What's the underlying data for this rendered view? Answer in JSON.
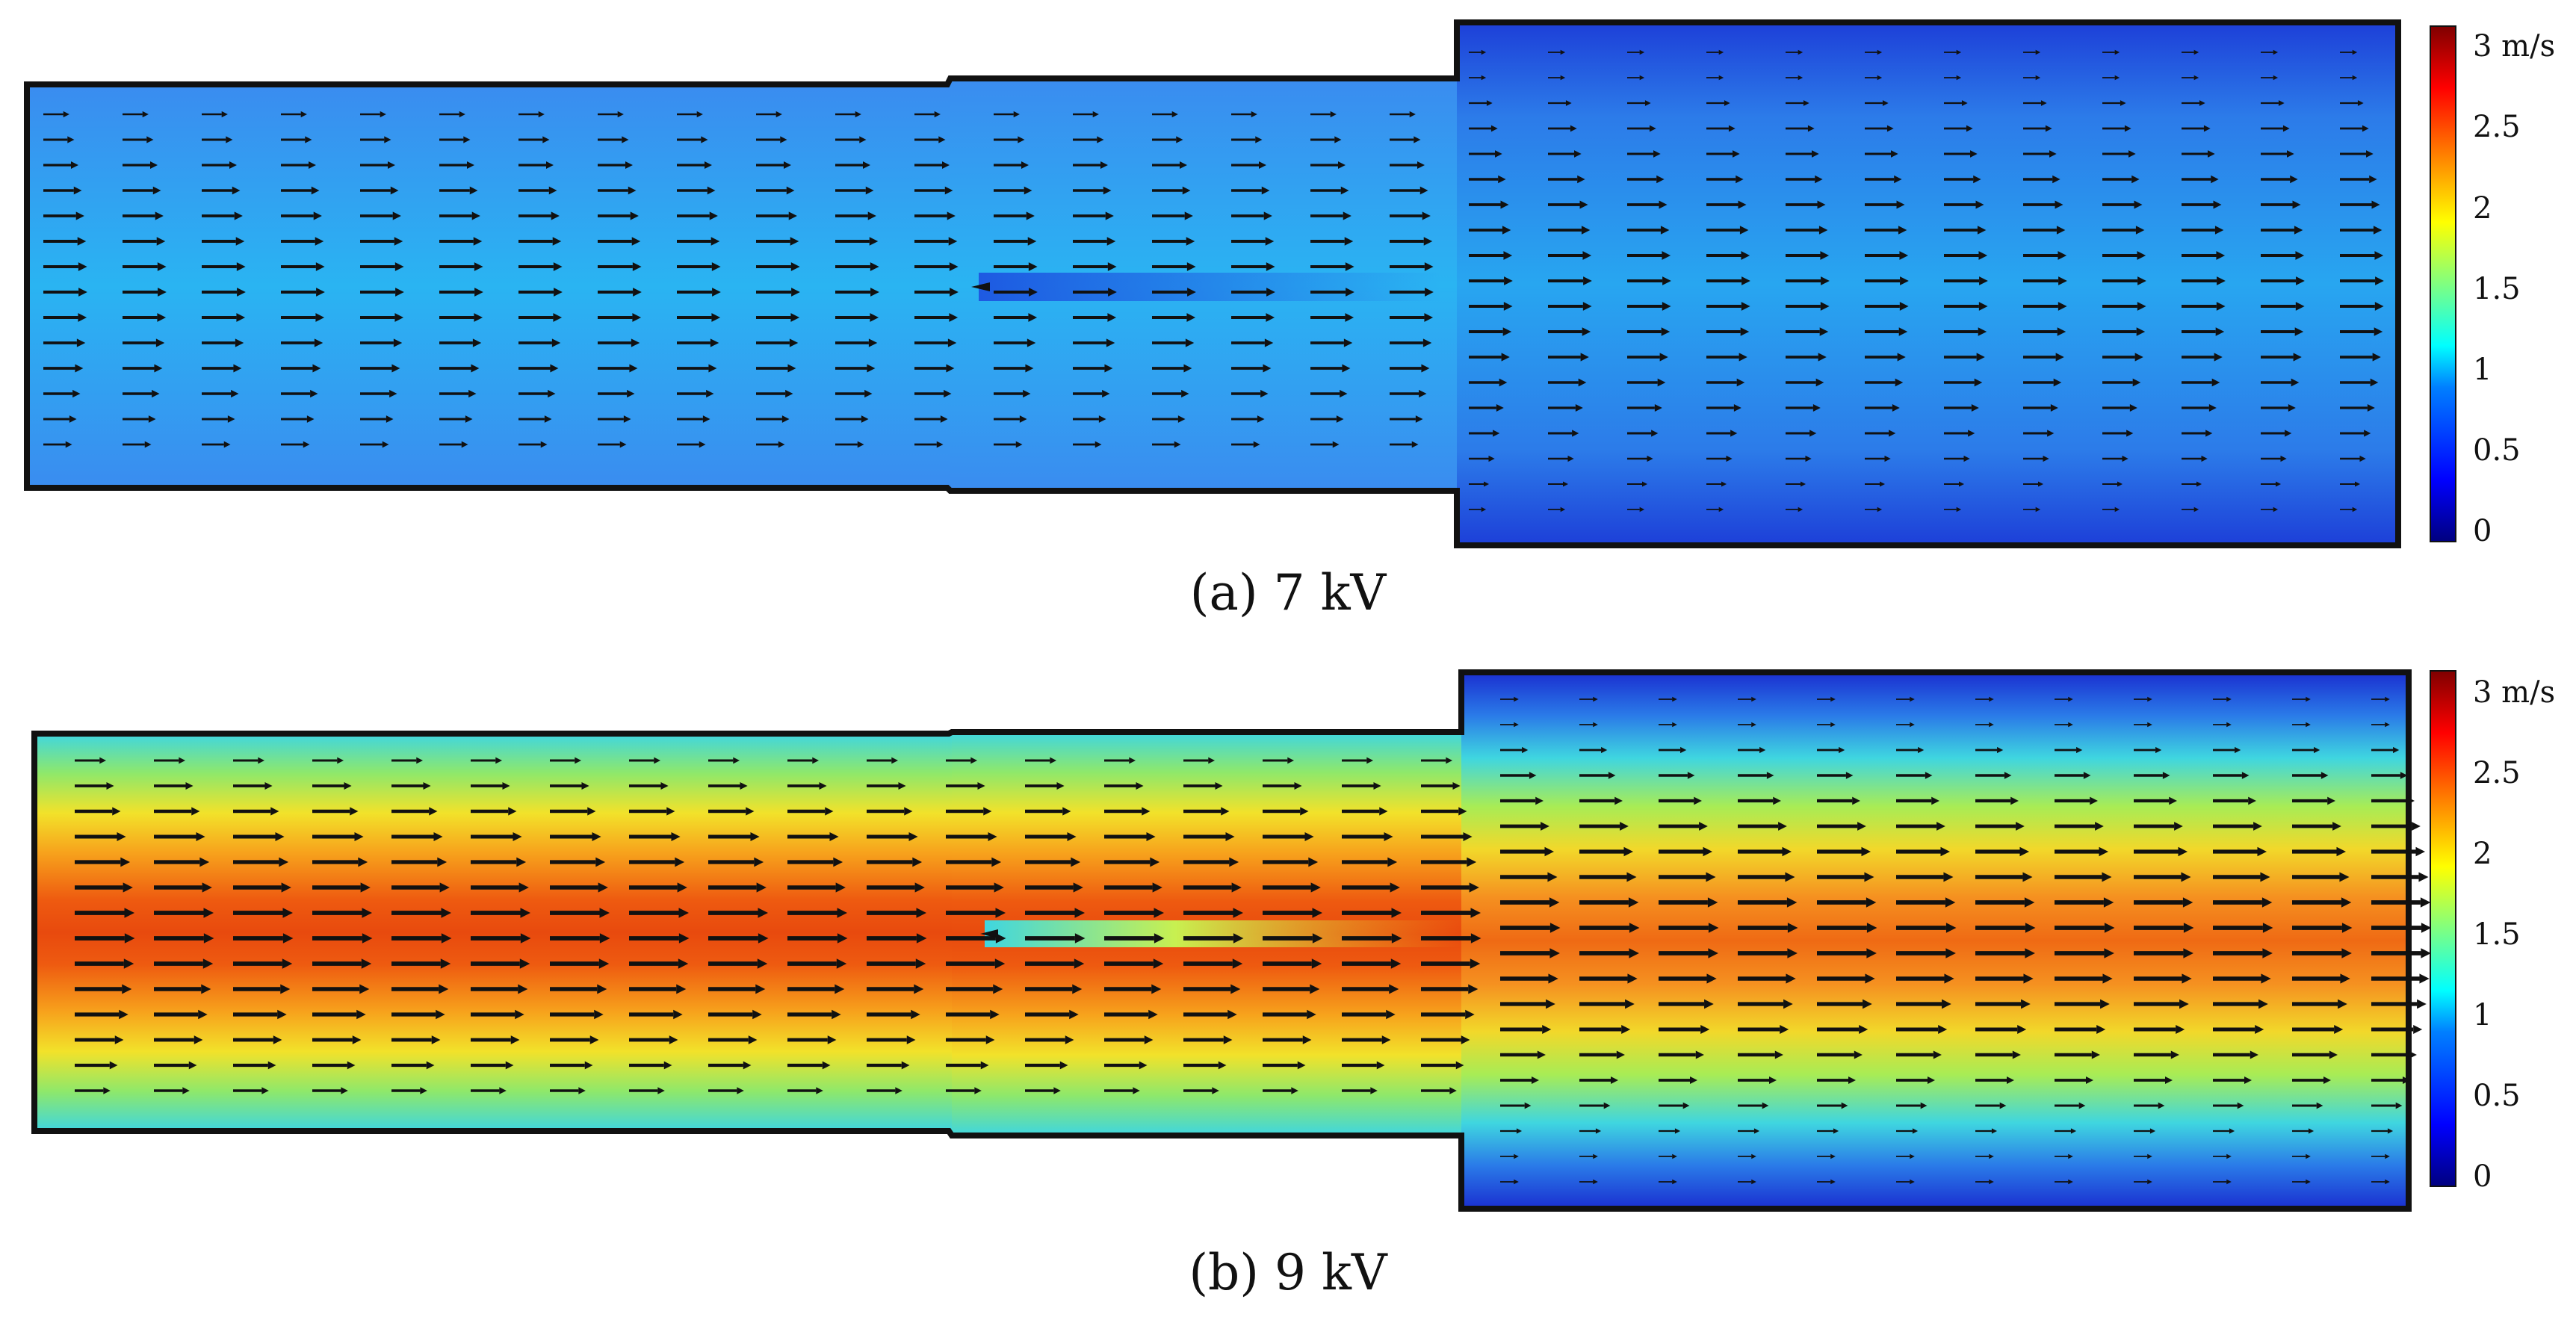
{
  "panels": [
    {
      "caption": "(a) 7 kV",
      "voltage_kv": 7,
      "field": "velocity magnitude",
      "colormap": "rainbow (blue-cyan-green-yellow-red)",
      "inlet_core_speed": 0.9,
      "outlet_core_speed": 0.75
    },
    {
      "caption": "(b) 9 kV",
      "voltage_kv": 9,
      "field": "velocity magnitude",
      "colormap": "rainbow (blue-cyan-green-yellow-red)",
      "inlet_core_speed": 2.7,
      "outlet_core_speed": 2.45
    }
  ],
  "colorbar": {
    "unit": "m/s",
    "max_label": "3 m/s",
    "tick_labels": [
      "2.5",
      "2",
      "1.5",
      "1",
      "0.5",
      "0"
    ],
    "range": [
      0,
      3
    ],
    "colors": [
      "#00007f",
      "#0000ff",
      "#0080ff",
      "#00ffff",
      "#80ff80",
      "#ffff00",
      "#ff8000",
      "#ff0000",
      "#7f0000"
    ]
  }
}
